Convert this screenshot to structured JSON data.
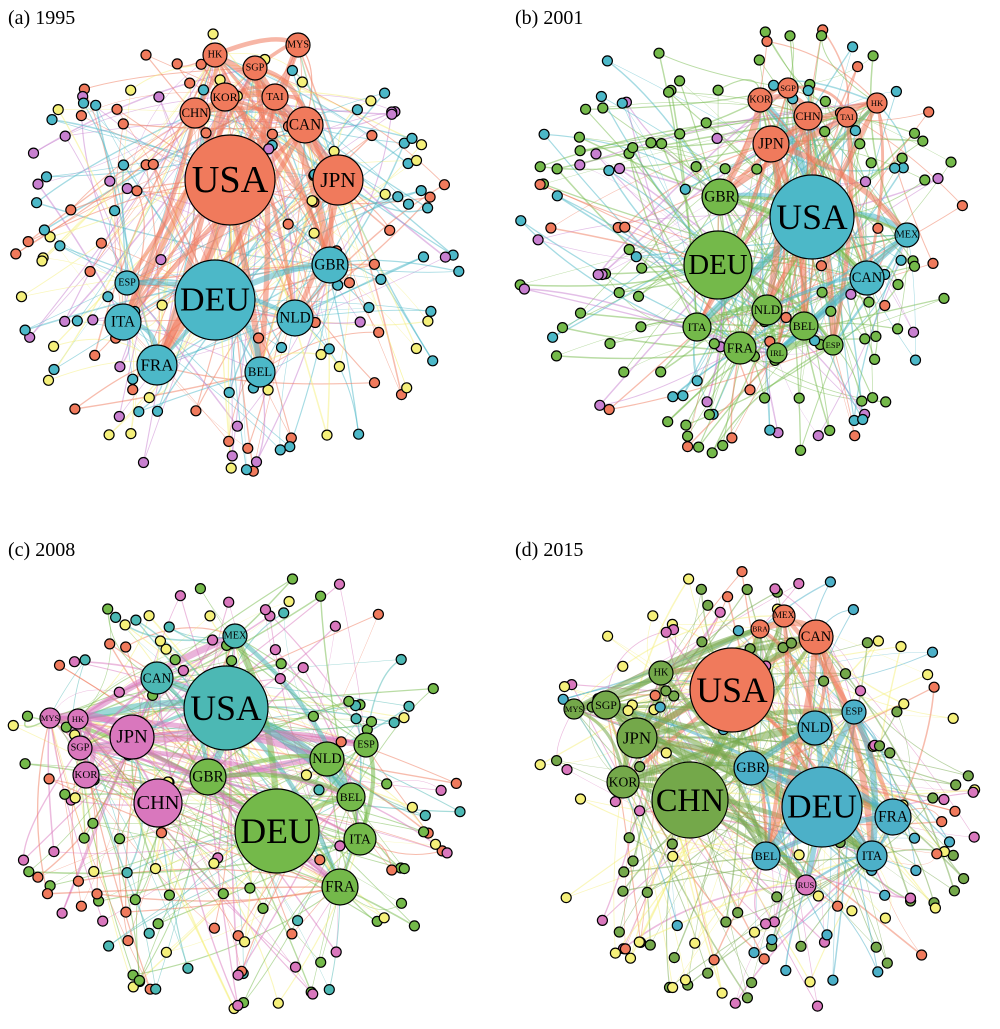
{
  "panels": [
    {
      "title": "(a) 1995",
      "nodes": [
        {
          "label": "USA",
          "color": "#f07a5c"
        },
        {
          "label": "JPN",
          "color": "#f07a5c"
        },
        {
          "label": "CAN",
          "color": "#f07a5c"
        },
        {
          "label": "CHN",
          "color": "#f07a5c"
        },
        {
          "label": "KOR",
          "color": "#f07a5c"
        },
        {
          "label": "TAI",
          "color": "#f07a5c"
        },
        {
          "label": "SGP",
          "color": "#f07a5c"
        },
        {
          "label": "HK",
          "color": "#f07a5c"
        },
        {
          "label": "MYS",
          "color": "#f07a5c"
        },
        {
          "label": "DEU",
          "color": "#4cb8c8"
        },
        {
          "label": "GBR",
          "color": "#4cb8c8"
        },
        {
          "label": "NLD",
          "color": "#4cb8c8"
        },
        {
          "label": "ITA",
          "color": "#4cb8c8"
        },
        {
          "label": "ESP",
          "color": "#4cb8c8"
        },
        {
          "label": "FRA",
          "color": "#4cb8c8"
        },
        {
          "label": "BEL",
          "color": "#4cb8c8"
        }
      ]
    },
    {
      "title": "(b) 2001",
      "nodes": [
        {
          "label": "USA",
          "color": "#4cb8c8"
        },
        {
          "label": "DEU",
          "color": "#74b94a"
        },
        {
          "label": "JPN",
          "color": "#f07a5c"
        },
        {
          "label": "CHN",
          "color": "#f07a5c"
        },
        {
          "label": "KOR",
          "color": "#f07a5c"
        },
        {
          "label": "SGP",
          "color": "#f07a5c"
        },
        {
          "label": "TAI",
          "color": "#f07a5c"
        },
        {
          "label": "HK",
          "color": "#f07a5c"
        },
        {
          "label": "GBR",
          "color": "#74b94a"
        },
        {
          "label": "CAN",
          "color": "#4cb8c8"
        },
        {
          "label": "MEX",
          "color": "#4cb8c8"
        },
        {
          "label": "NLD",
          "color": "#74b94a"
        },
        {
          "label": "BEL",
          "color": "#74b94a"
        },
        {
          "label": "ITA",
          "color": "#74b94a"
        },
        {
          "label": "FRA",
          "color": "#74b94a"
        },
        {
          "label": "IRL",
          "color": "#74b94a"
        },
        {
          "label": "ESP",
          "color": "#74b94a"
        }
      ]
    },
    {
      "title": "(c) 2008",
      "nodes": [
        {
          "label": "USA",
          "color": "#4cb8b4"
        },
        {
          "label": "DEU",
          "color": "#74b94a"
        },
        {
          "label": "JPN",
          "color": "#d977bd"
        },
        {
          "label": "CHN",
          "color": "#d977bd"
        },
        {
          "label": "KOR",
          "color": "#d977bd"
        },
        {
          "label": "SGP",
          "color": "#d977bd"
        },
        {
          "label": "HK",
          "color": "#d977bd"
        },
        {
          "label": "MYS",
          "color": "#d977bd"
        },
        {
          "label": "CAN",
          "color": "#4cb8b4"
        },
        {
          "label": "MEX",
          "color": "#4cb8b4"
        },
        {
          "label": "GBR",
          "color": "#74b94a"
        },
        {
          "label": "NLD",
          "color": "#74b94a"
        },
        {
          "label": "ESP",
          "color": "#74b94a"
        },
        {
          "label": "BEL",
          "color": "#74b94a"
        },
        {
          "label": "ITA",
          "color": "#74b94a"
        },
        {
          "label": "FRA",
          "color": "#74b94a"
        }
      ]
    },
    {
      "title": "(d) 2015",
      "nodes": [
        {
          "label": "USA",
          "color": "#f07a5c"
        },
        {
          "label": "CHN",
          "color": "#74a84a"
        },
        {
          "label": "DEU",
          "color": "#4cb0c8"
        },
        {
          "label": "JPN",
          "color": "#74a84a"
        },
        {
          "label": "KOR",
          "color": "#74a84a"
        },
        {
          "label": "SGP",
          "color": "#74a84a"
        },
        {
          "label": "HK",
          "color": "#74a84a"
        },
        {
          "label": "MYS",
          "color": "#74a84a"
        },
        {
          "label": "CAN",
          "color": "#f07a5c"
        },
        {
          "label": "MEX",
          "color": "#f07a5c"
        },
        {
          "label": "BRA",
          "color": "#f07a5c"
        },
        {
          "label": "NLD",
          "color": "#4cb0c8"
        },
        {
          "label": "ESP",
          "color": "#4cb0c8"
        },
        {
          "label": "GBR",
          "color": "#4cb0c8"
        },
        {
          "label": "BEL",
          "color": "#4cb0c8"
        },
        {
          "label": "ITA",
          "color": "#4cb0c8"
        },
        {
          "label": "FRA",
          "color": "#4cb0c8"
        },
        {
          "label": "RUS",
          "color": "#d977bd"
        }
      ]
    }
  ]
}
